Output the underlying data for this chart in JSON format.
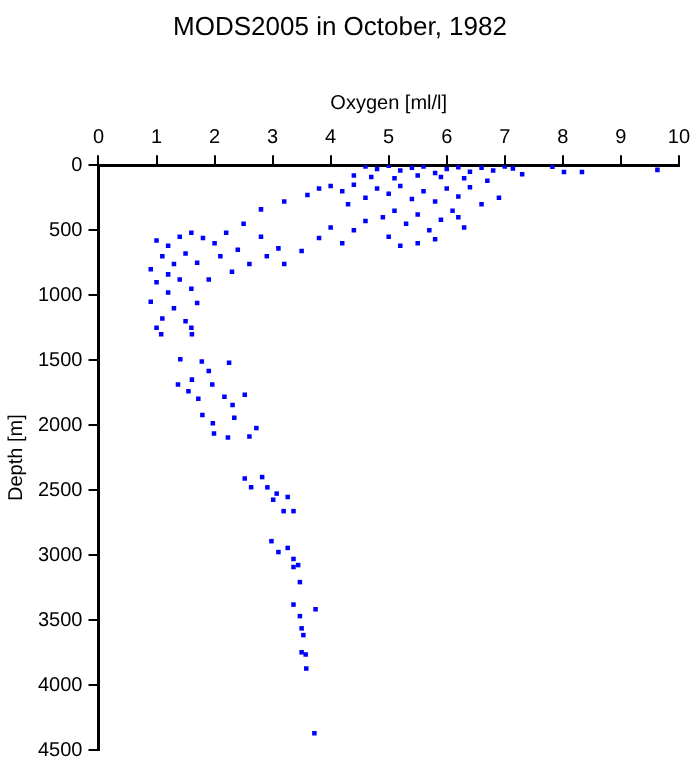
{
  "chart_data": {
    "type": "scatter",
    "title": "MODS2005 in October, 1982",
    "xlabel": "Oxygen [ml/l]",
    "ylabel": "Depth [m]",
    "xlim": [
      0,
      10
    ],
    "xticks": [
      0,
      1,
      2,
      3,
      4,
      5,
      6,
      7,
      8,
      9,
      10
    ],
    "ylim": [
      4500,
      0
    ],
    "yticks": [
      0,
      500,
      1000,
      1500,
      2000,
      2500,
      3000,
      3500,
      4000,
      4500
    ],
    "grid": false,
    "legend": false,
    "marker": "square",
    "series": [
      {
        "color": "#0000ff",
        "x": [
          1.08,
          1.61,
          1.41,
          1.78,
          2.25,
          1.9,
          1.61,
          1.37,
          1.96,
          1.55,
          1.72,
          2.17,
          2.52,
          2.31,
          1.79,
          2.34,
          1.97,
          2.72,
          1.99,
          2.6,
          2.23,
          2.52,
          2.82,
          2.63,
          2.91,
          3.07,
          3.26,
          3.01,
          3.19,
          3.36,
          2.98,
          3.26,
          3.1,
          3.36,
          3.44,
          3.36,
          3.47,
          3.36,
          3.74,
          3.47,
          3.5,
          3.53,
          3.5,
          3.57,
          3.58,
          3.72,
          7.14,
          7.82,
          8.02,
          8.33,
          9.63,
          4.6,
          4.8,
          5.0,
          5.2,
          5.4,
          5.6,
          5.8,
          6.0,
          6.2,
          6.4,
          6.6,
          6.8,
          7.0,
          4.4,
          4.7,
          5.1,
          5.5,
          5.9,
          6.3,
          6.7,
          7.3,
          3.6,
          3.8,
          4.0,
          4.2,
          4.4,
          4.6,
          4.8,
          5.0,
          5.2,
          5.4,
          5.6,
          5.8,
          6.0,
          6.2,
          6.4,
          6.6,
          6.9,
          4.3,
          3.2,
          2.8,
          4.9,
          5.1,
          5.3,
          5.5,
          5.7,
          5.9,
          6.1,
          5.0,
          5.2,
          5.5,
          5.8,
          6.2,
          6.3,
          4.6,
          4.4,
          4.0,
          3.8,
          4.2,
          3.5,
          3.1,
          2.9,
          2.5,
          2.2,
          2.0,
          1.8,
          2.4,
          2.8,
          2.1,
          2.6,
          3.2,
          2.3,
          1.0,
          1.2,
          1.4,
          1.6,
          1.1,
          1.5,
          1.3,
          0.9,
          1.7,
          1.0,
          1.4,
          1.2,
          1.6,
          0.9,
          1.3,
          1.7,
          1.1,
          1.5,
          1.0,
          1.6,
          1.9,
          1.2
        ],
        "values": [
          1300,
          1300,
          1494,
          1510,
          1520,
          1583,
          1650,
          1688,
          1688,
          1740,
          1797,
          1782,
          1766,
          1845,
          1923,
          1944,
          1986,
          2023,
          2065,
          2087,
          2096,
          2410,
          2400,
          2479,
          2479,
          2527,
          2553,
          2574,
          2662,
          2662,
          2893,
          2945,
          2977,
          3030,
          3077,
          3092,
          3208,
          3381,
          3417,
          3470,
          3564,
          3616,
          3748,
          3765,
          3873,
          4371,
          26,
          11,
          52,
          52,
          36,
          10,
          30,
          5,
          40,
          20,
          10,
          60,
          30,
          15,
          50,
          20,
          40,
          10,
          80,
          90,
          100,
          80,
          90,
          100,
          120,
          70,
          230,
          180,
          160,
          200,
          150,
          250,
          180,
          220,
          160,
          260,
          200,
          280,
          180,
          240,
          170,
          300,
          250,
          300,
          280,
          340,
          400,
          350,
          450,
          380,
          500,
          420,
          350,
          550,
          620,
          600,
          570,
          400,
          480,
          430,
          500,
          480,
          560,
          600,
          660,
          640,
          700,
          450,
          520,
          600,
          560,
          650,
          550,
          700,
          760,
          760,
          820,
          580,
          620,
          550,
          520,
          700,
          680,
          760,
          800,
          750,
          900,
          880,
          980,
          950,
          1050,
          1100,
          1060,
          1180,
          1200,
          1250,
          1250,
          880,
          840
        ]
      }
    ]
  }
}
